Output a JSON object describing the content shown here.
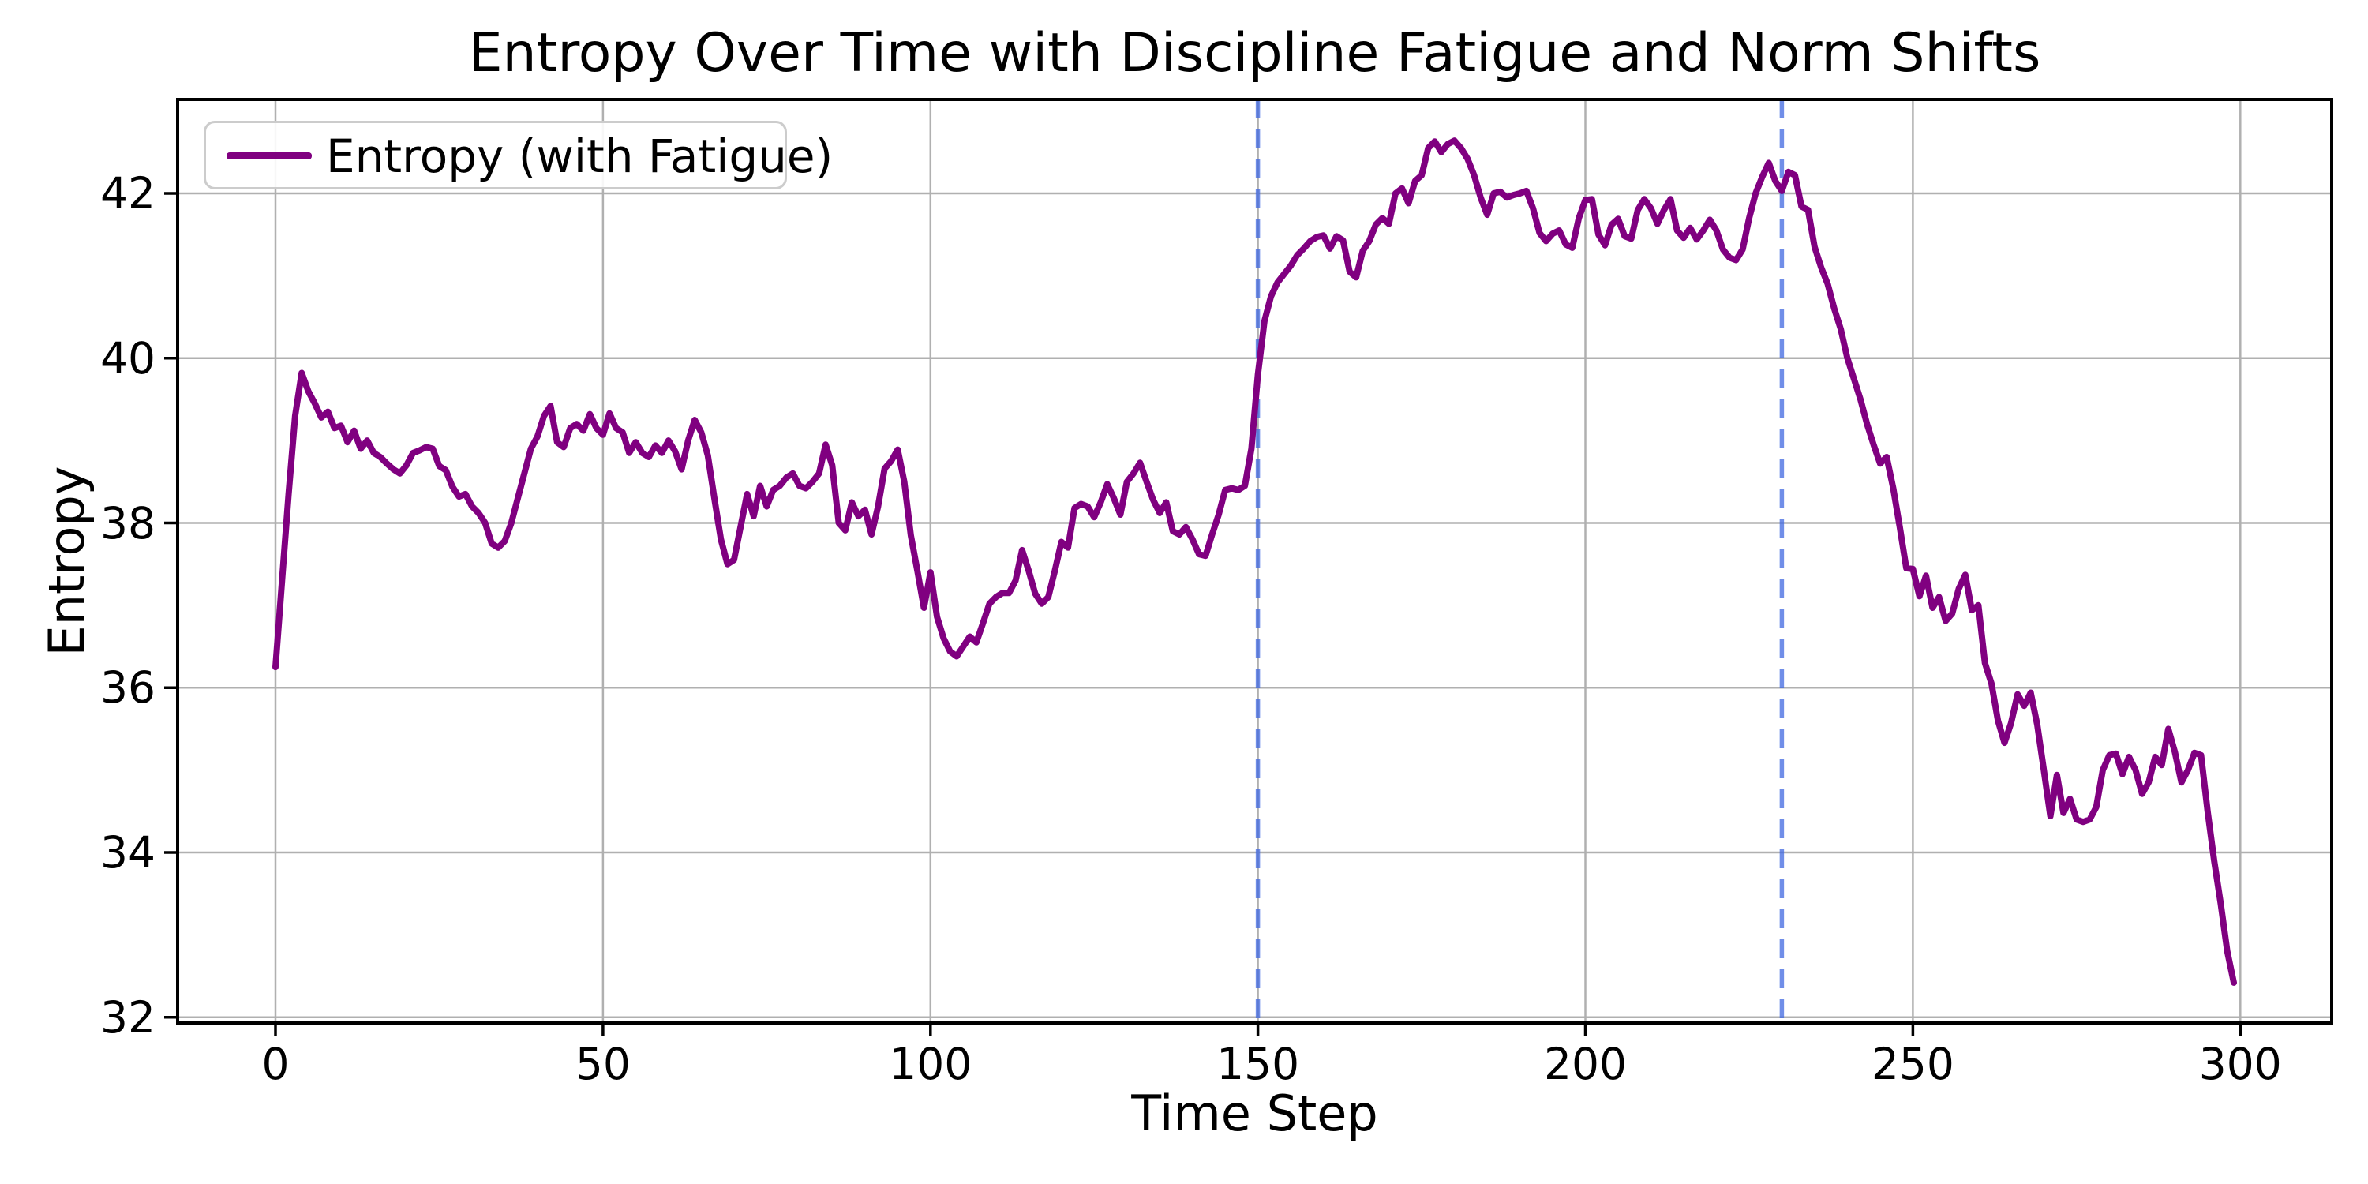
{
  "chart_data": {
    "type": "line",
    "title": "Entropy Over Time with Discipline Fatigue and Norm Shifts",
    "xlabel": "Time Step",
    "ylabel": "Entropy",
    "xlim": [
      -14.95,
      313.95
    ],
    "ylim": [
      31.93,
      43.14
    ],
    "x_ticks": [
      0,
      50,
      100,
      150,
      200,
      250,
      300
    ],
    "y_ticks": [
      32,
      34,
      36,
      38,
      40,
      42
    ],
    "grid": true,
    "legend_position": "upper left",
    "style": {
      "line_color": "#800080",
      "vline_color": "#4169e1",
      "grid_color": "#b0b0b0",
      "spine_color": "#000000",
      "background": "#ffffff"
    },
    "vlines": [
      {
        "x": 150,
        "color": "#4169e1",
        "style": "dashed"
      },
      {
        "x": 230,
        "color": "#4169e1",
        "style": "dashed"
      }
    ],
    "series": [
      {
        "name": "Entropy (with Fatigue)",
        "color": "#800080",
        "x_start": 0,
        "x_step": 1,
        "values": [
          36.25,
          37.3,
          38.35,
          39.3,
          39.82,
          39.6,
          39.45,
          39.28,
          39.35,
          39.15,
          39.18,
          38.98,
          39.12,
          38.9,
          39.0,
          38.85,
          38.8,
          38.72,
          38.65,
          38.6,
          38.7,
          38.85,
          38.88,
          38.92,
          38.9,
          38.69,
          38.64,
          38.44,
          38.32,
          38.35,
          38.2,
          38.12,
          38.0,
          37.75,
          37.7,
          37.78,
          38.0,
          38.3,
          38.6,
          38.9,
          39.05,
          39.3,
          39.42,
          38.98,
          38.92,
          39.15,
          39.2,
          39.12,
          39.32,
          39.15,
          39.07,
          39.33,
          39.15,
          39.1,
          38.85,
          38.98,
          38.85,
          38.8,
          38.94,
          38.85,
          39.0,
          38.87,
          38.65,
          39.0,
          39.25,
          39.1,
          38.82,
          38.3,
          37.8,
          37.5,
          37.55,
          37.95,
          38.35,
          38.08,
          38.45,
          38.2,
          38.4,
          38.45,
          38.55,
          38.6,
          38.45,
          38.42,
          38.5,
          38.6,
          38.95,
          38.7,
          38.0,
          37.91,
          38.25,
          38.08,
          38.16,
          37.86,
          38.2,
          38.66,
          38.75,
          38.89,
          38.5,
          37.85,
          37.42,
          36.97,
          37.4,
          36.86,
          36.6,
          36.44,
          36.38,
          36.5,
          36.62,
          36.55,
          36.78,
          37.02,
          37.1,
          37.15,
          37.15,
          37.3,
          37.67,
          37.42,
          37.14,
          37.02,
          37.1,
          37.42,
          37.77,
          37.7,
          38.18,
          38.23,
          38.2,
          38.07,
          38.25,
          38.47,
          38.3,
          38.1,
          38.5,
          38.6,
          38.73,
          38.5,
          38.28,
          38.12,
          38.25,
          37.9,
          37.86,
          37.95,
          37.8,
          37.62,
          37.6,
          37.86,
          38.1,
          38.4,
          38.42,
          38.4,
          38.45,
          38.9,
          39.8,
          40.45,
          40.75,
          40.92,
          41.02,
          41.12,
          41.25,
          41.33,
          41.42,
          41.47,
          41.49,
          41.33,
          41.48,
          41.43,
          41.05,
          40.98,
          41.3,
          41.42,
          41.62,
          41.7,
          41.63,
          42.0,
          42.06,
          41.88,
          42.15,
          42.22,
          42.55,
          42.63,
          42.5,
          42.6,
          42.64,
          42.55,
          42.42,
          42.22,
          41.95,
          41.74,
          42.0,
          42.02,
          41.95,
          41.98,
          42.0,
          42.03,
          41.82,
          41.52,
          41.42,
          41.51,
          41.55,
          41.38,
          41.34,
          41.7,
          41.92,
          41.93,
          41.5,
          41.37,
          41.62,
          41.69,
          41.48,
          41.45,
          41.8,
          41.93,
          41.82,
          41.63,
          41.8,
          41.93,
          41.55,
          41.46,
          41.58,
          41.44,
          41.55,
          41.68,
          41.55,
          41.32,
          41.22,
          41.19,
          41.32,
          41.7,
          42.0,
          42.2,
          42.37,
          42.15,
          42.03,
          42.26,
          42.22,
          41.84,
          41.8,
          41.35,
          41.1,
          40.9,
          40.6,
          40.35,
          40.0,
          39.75,
          39.5,
          39.2,
          38.95,
          38.72,
          38.8,
          38.42,
          37.95,
          37.45,
          37.44,
          37.11,
          37.36,
          36.97,
          37.1,
          36.81,
          36.9,
          37.2,
          37.37,
          36.94,
          37.0,
          36.3,
          36.05,
          35.6,
          35.33,
          35.57,
          35.92,
          35.78,
          35.94,
          35.55,
          35.0,
          34.44,
          34.94,
          34.48,
          34.65,
          34.4,
          34.37,
          34.4,
          34.55,
          35.0,
          35.18,
          35.2,
          34.95,
          35.16,
          35.0,
          34.71,
          34.85,
          35.16,
          35.06,
          35.5,
          35.22,
          34.85,
          35.0,
          35.21,
          35.18,
          34.5,
          33.9,
          33.38,
          32.8,
          32.42
        ]
      }
    ],
    "legend": {
      "entries": [
        {
          "label": "Entropy (with Fatigue)",
          "color": "#800080"
        }
      ]
    }
  }
}
